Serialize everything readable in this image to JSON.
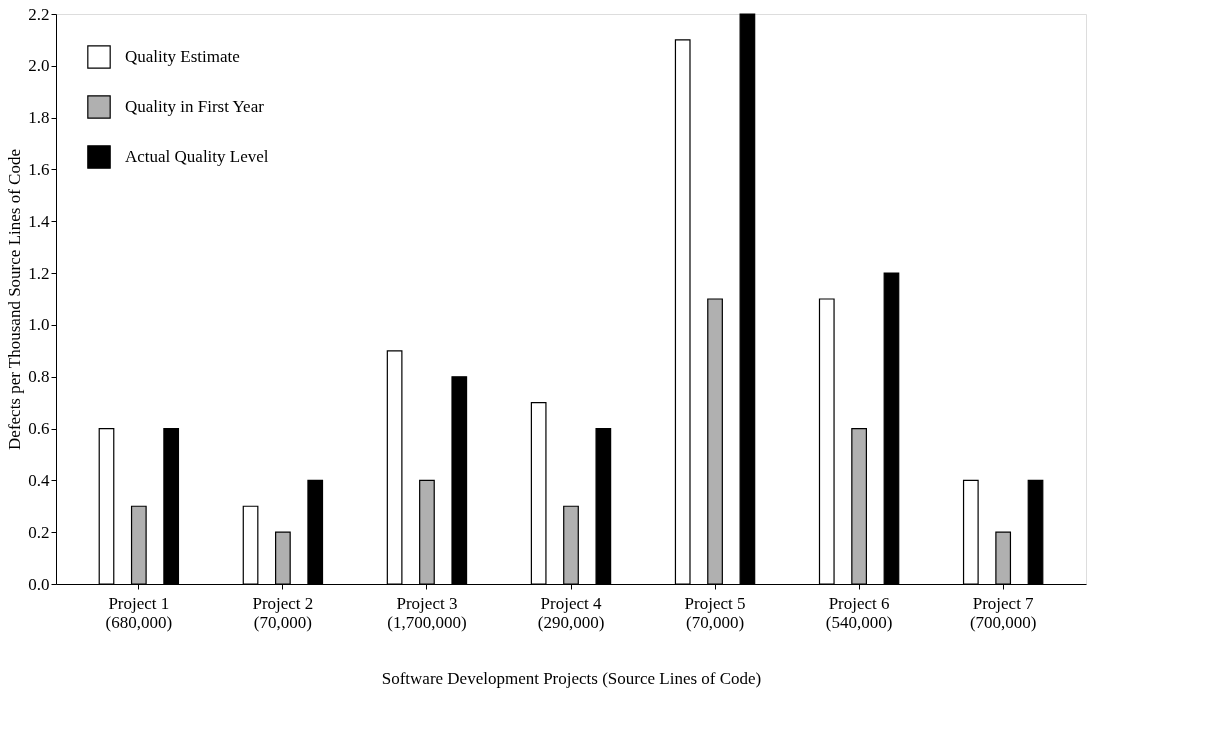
{
  "chart_data": {
    "type": "bar",
    "xlabel": "Software Development Projects (Source Lines of Code)",
    "ylabel": "Defects per Thousand Source Lines of Code",
    "categories": [
      "Project 1\n(680,000)",
      "Project 2\n(70,000)",
      "Project 3\n(1,700,000)",
      "Project 4\n(290,000)",
      "Project 5\n(70,000)",
      "Project 6\n(540,000)",
      "Project 7\n(700,000)"
    ],
    "series": [
      {
        "name": "Quality Estimate",
        "color": "#ffffff",
        "values": [
          0.6,
          0.3,
          0.9,
          0.7,
          2.1,
          1.1,
          0.4
        ]
      },
      {
        "name": "Quality in First Year",
        "color": "#b0b0b0",
        "values": [
          0.3,
          0.2,
          0.4,
          0.3,
          1.1,
          0.6,
          0.2
        ]
      },
      {
        "name": "Actual Quality Level",
        "color": "#000000",
        "values": [
          0.6,
          0.4,
          0.8,
          0.6,
          2.2,
          1.2,
          0.4
        ]
      }
    ],
    "ylim": [
      0,
      2.2
    ],
    "yticks": [
      {
        "value": 0,
        "label": "0.0"
      },
      {
        "value": 0.2,
        "label": "0.2"
      },
      {
        "value": 0.4,
        "label": "0.4"
      },
      {
        "value": 0.6,
        "label": "0.6"
      },
      {
        "value": 0.8,
        "label": "0.8"
      },
      {
        "value": 1.0,
        "label": "1.0"
      },
      {
        "value": 1.2,
        "label": "1.2"
      },
      {
        "value": 1.4,
        "label": "1.4"
      },
      {
        "value": 1.6,
        "label": "1.6"
      },
      {
        "value": 1.8,
        "label": "1.8"
      },
      {
        "value": 2.0,
        "label": "2.0"
      },
      {
        "value": 2.2,
        "label": "2.2"
      }
    ],
    "grid": false,
    "legend": "top left"
  }
}
